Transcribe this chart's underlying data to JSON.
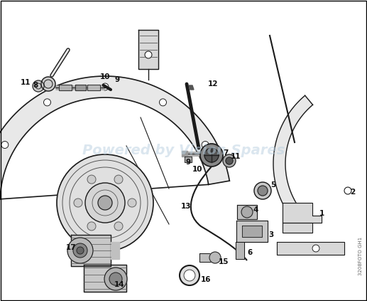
{
  "background_color": "#ffffff",
  "border_color": "#000000",
  "watermark_text": "Powered by Vision Spares",
  "watermark_color": "#b8cfe0",
  "watermark_alpha": 0.5,
  "watermark_fontsize": 14,
  "side_text": "3208FOTO GH1",
  "side_text_color": "#666666",
  "side_text_fontsize": 5.0,
  "label_fontsize": 7.5,
  "label_color": "#111111",
  "figsize": [
    5.17,
    4.23
  ],
  "dpi": 100
}
